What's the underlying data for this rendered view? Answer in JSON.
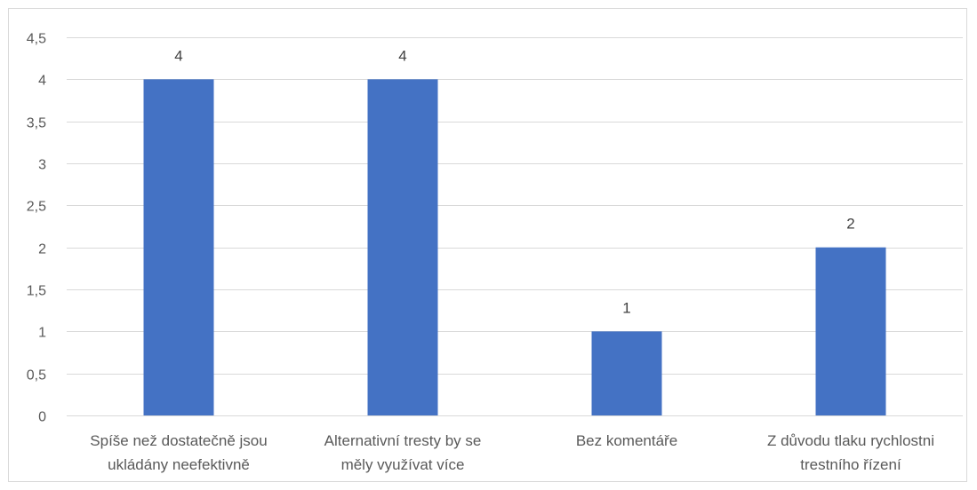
{
  "chart_data": {
    "type": "bar",
    "categories": [
      [
        "Spíše než dostatečně jsou",
        "ukládány neefektivně"
      ],
      [
        "Alternativní tresty by se",
        "měly využívat více"
      ],
      [
        "Bez komentáře"
      ],
      [
        "Z důvodu tlaku rychlostni",
        "trestního řízení"
      ]
    ],
    "values": [
      4,
      4,
      1,
      2
    ],
    "data_labels": [
      "4",
      "4",
      "1",
      "2"
    ],
    "y_ticks": [
      "0",
      "0,5",
      "1",
      "1,5",
      "2",
      "2,5",
      "3",
      "3,5",
      "4",
      "4,5"
    ],
    "ylim": [
      0,
      4.5
    ],
    "grid": true,
    "legend": "none",
    "title": "",
    "xlabel": "",
    "ylabel": "",
    "colors": {
      "bar": "#4472c4",
      "grid": "#d9d9d9",
      "axis": "#d9d9d9",
      "text": "#595959"
    }
  }
}
